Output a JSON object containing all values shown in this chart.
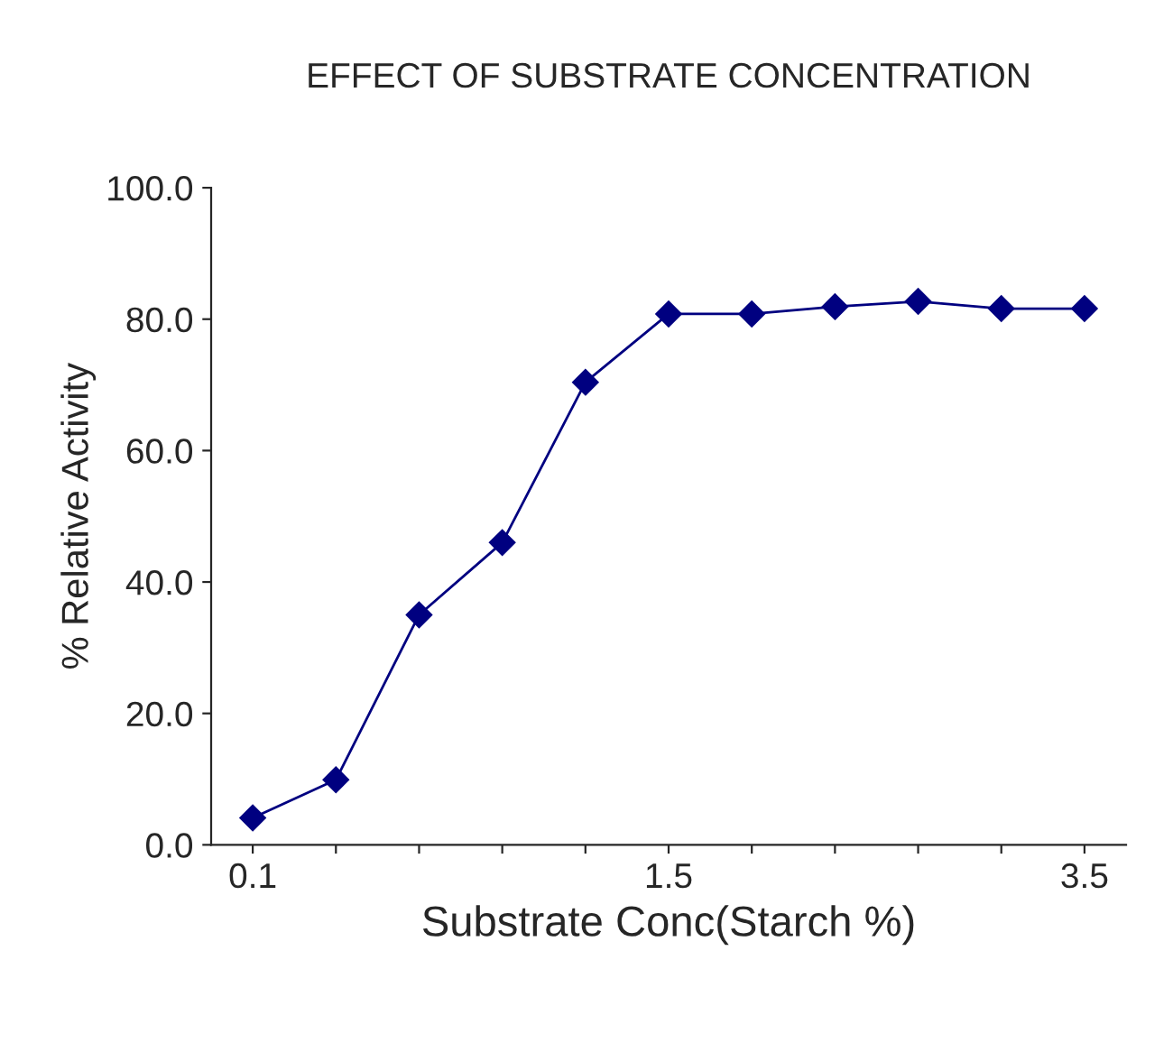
{
  "chart_data": {
    "type": "line",
    "title": "EFFECT OF SUBSTRATE CONCENTRATION",
    "xlabel": "Substrate Conc(Starch %)",
    "ylabel": "% Relative Activity",
    "categories": [
      "0.1",
      null,
      null,
      null,
      null,
      "1.5",
      null,
      null,
      null,
      null,
      "3.5"
    ],
    "series": [
      {
        "color": "#000080",
        "values": [
          4.1,
          9.9,
          35.0,
          46.0,
          70.4,
          80.8,
          80.8,
          81.9,
          82.7,
          81.6,
          81.6
        ]
      }
    ],
    "ylim": [
      0,
      100
    ],
    "yticks": [
      {
        "value": 0,
        "label": "0.0"
      },
      {
        "value": 20,
        "label": "20.0"
      },
      {
        "value": 40,
        "label": "40.0"
      },
      {
        "value": 60,
        "label": "60.0"
      },
      {
        "value": 80,
        "label": "80.0"
      },
      {
        "value": 100,
        "label": "100.0"
      }
    ],
    "grid": false,
    "legend": false,
    "marker": "diamond",
    "line_style": "solid"
  }
}
